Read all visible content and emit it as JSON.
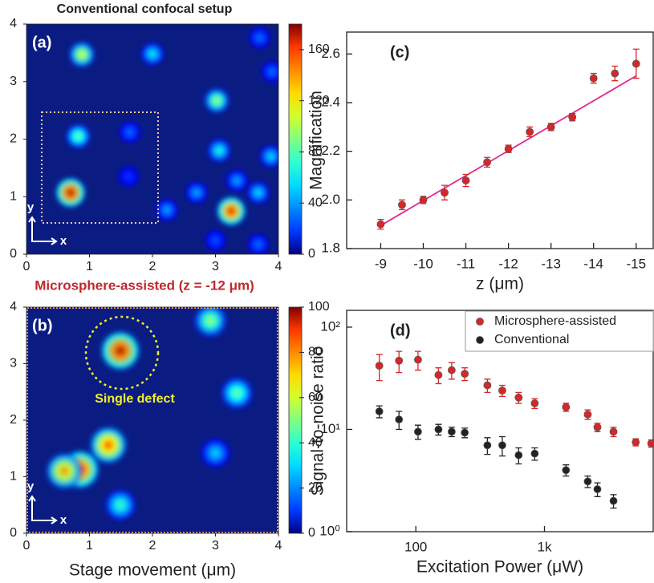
{
  "chart_data": [
    {
      "type": "heatmap",
      "title": "Conventional confocal setup",
      "label": "(a)",
      "arrow_x_label": "x",
      "arrow_y_label": "y",
      "x": [
        0.88,
        2.0,
        3.7,
        3.02,
        0.82,
        1.64,
        3.06,
        3.88,
        2.7,
        2.23,
        1.62,
        0.7,
        3.25,
        3.68,
        3.34,
        3.0,
        3.68,
        3.9
      ],
      "y": [
        3.47,
        3.48,
        3.76,
        2.67,
        2.05,
        2.12,
        1.8,
        1.7,
        1.07,
        0.77,
        1.35,
        1.07,
        0.75,
        1.07,
        1.28,
        0.24,
        0.17,
        3.17
      ],
      "values": [
        110,
        70,
        45,
        100,
        90,
        45,
        75,
        65,
        55,
        55,
        35,
        175,
        165,
        65,
        55,
        40,
        45,
        45
      ],
      "xlim": [
        0,
        4
      ],
      "ylim": [
        0,
        4
      ],
      "xticks": [
        0,
        1,
        2,
        3,
        4
      ],
      "yticks": [
        0,
        1,
        2,
        3,
        4
      ],
      "clim": [
        0,
        180
      ],
      "cticks": [
        0,
        40,
        80,
        120,
        160
      ]
    },
    {
      "type": "heatmap",
      "title": "Microsphere-assisted (z = -12 μm)",
      "label": "(b)",
      "annotation": "Single defect",
      "arrow_x_label": "x",
      "arrow_y_label": "y",
      "x_label": "Stage movement (μm)",
      "x": [
        1.49,
        2.92,
        3.34,
        0.85,
        1.3,
        1.49,
        3.0,
        0.6
      ],
      "y": [
        3.23,
        3.76,
        2.48,
        1.13,
        1.56,
        0.5,
        1.42,
        1.1
      ],
      "values": [
        97,
        55,
        50,
        92,
        82,
        45,
        35,
        75
      ],
      "xlim": [
        0,
        4
      ],
      "ylim": [
        0,
        4
      ],
      "xticks": [
        0,
        1,
        2,
        3,
        4
      ],
      "yticks": [
        0,
        1,
        2,
        3,
        4
      ],
      "clim": [
        0,
        100
      ],
      "cticks": [
        0,
        20,
        40,
        60,
        80,
        100
      ]
    },
    {
      "type": "scatter",
      "label": "(c)",
      "x_label": "z (μm)",
      "y_label": "Magnification",
      "series": [
        {
          "color": "#d62728",
          "x": [
            -9,
            -9.5,
            -10,
            -10.5,
            -11,
            -11.5,
            -12,
            -12.5,
            -13,
            -13.5,
            -14,
            -14.5,
            -15
          ],
          "values": [
            1.9,
            1.98,
            2.0,
            2.03,
            2.08,
            2.155,
            2.21,
            2.28,
            2.3,
            2.34,
            2.5,
            2.52,
            2.56
          ],
          "errors": [
            0.02,
            0.02,
            0.015,
            0.03,
            0.025,
            0.02,
            0.015,
            0.02,
            0.015,
            0.015,
            0.02,
            0.03,
            0.06
          ]
        }
      ],
      "fit": {
        "color": "#e8248c",
        "x": [
          -9,
          -15
        ],
        "values": [
          1.895,
          2.51
        ]
      },
      "xlim": [
        -8.2,
        -15.4
      ],
      "ylim": [
        1.8,
        2.69
      ],
      "xticks": [
        -9,
        -10,
        -11,
        -12,
        -13,
        -14,
        -15
      ],
      "yticks": [
        1.8,
        {
          "value": 2.0,
          "label": "2.0"
        },
        2.2,
        2.4,
        2.6
      ]
    },
    {
      "type": "scatter",
      "label": "(d)",
      "x_label": "Excitation Power (μW)",
      "y_label": "Signal-to-noise ratio",
      "xlog": true,
      "ylog": true,
      "legend": "upper right",
      "series": [
        {
          "name": "Microsphere-assisted",
          "color": "#d62728",
          "x": [
            52,
            74,
            104,
            150,
            190,
            240,
            360,
            470,
            630,
            840,
            1470,
            2170,
            2580,
            3440,
            5120,
            6760
          ],
          "values": [
            42,
            47,
            48,
            34,
            38,
            35,
            27,
            24,
            20.5,
            18,
            16.5,
            14,
            10.5,
            9.5,
            7.5,
            7.3
          ],
          "errors": [
            12,
            11,
            10,
            6,
            7,
            5,
            4,
            3,
            2.5,
            2,
            1.5,
            1.5,
            1,
            1,
            0.6,
            0.6
          ]
        },
        {
          "name": "Conventional",
          "color": "#222222",
          "x": [
            52,
            74,
            104,
            150,
            190,
            240,
            360,
            470,
            630,
            840,
            1470,
            2170,
            2580,
            3440
          ],
          "values": [
            15,
            12.5,
            9.5,
            10,
            9.5,
            9.3,
            7,
            7,
            5.6,
            5.8,
            4,
            3.1,
            2.6,
            2
          ],
          "errors": [
            2,
            2.5,
            1.5,
            1.2,
            1,
            1,
            1.3,
            1.5,
            1,
            0.8,
            0.5,
            0.4,
            0.4,
            0.3
          ]
        }
      ],
      "xlim": [
        29,
        7000
      ],
      "ylim": [
        1,
        146
      ],
      "xticks": [
        100,
        {
          "value": 1000,
          "label": "1k"
        }
      ],
      "yticks": [
        {
          "value": 1,
          "label": "10⁰"
        },
        {
          "value": 10,
          "label": "10¹"
        },
        {
          "value": 100,
          "label": "10²"
        }
      ]
    }
  ]
}
